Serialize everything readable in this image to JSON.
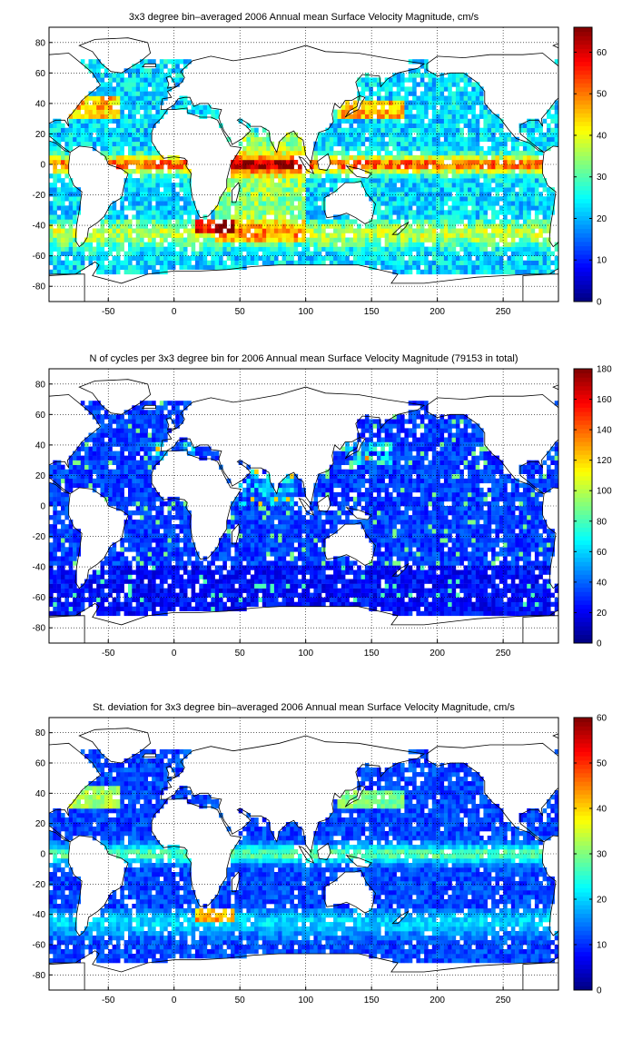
{
  "chart_data": [
    {
      "type": "heatmap",
      "title": "3x3 degree bin–averaged 2006 Annual mean Surface Velocity Magnitude, cm/s",
      "xlabel": "",
      "ylabel": "",
      "xlim": [
        -95,
        292
      ],
      "ylim": [
        -90,
        90
      ],
      "x_ticks": [
        -50,
        0,
        50,
        100,
        150,
        200,
        250
      ],
      "y_ticks": [
        80,
        60,
        40,
        20,
        0,
        -20,
        -40,
        -60,
        -80
      ],
      "grid": true,
      "grid_style": "dotted",
      "colormap": "jet",
      "colorbar": {
        "min": 0,
        "max": 66,
        "ticks": [
          0,
          10,
          20,
          30,
          40,
          50,
          60
        ],
        "placement": "right"
      },
      "field": "mean-velocity"
    },
    {
      "type": "heatmap",
      "title": "N of cycles per 3x3 degree bin for 2006 Annual mean Surface Velocity Magnitude (79153 in total)",
      "xlabel": "",
      "ylabel": "",
      "xlim": [
        -95,
        292
      ],
      "ylim": [
        -90,
        90
      ],
      "x_ticks": [
        -50,
        0,
        50,
        100,
        150,
        200,
        250
      ],
      "y_ticks": [
        80,
        60,
        40,
        20,
        0,
        -20,
        -40,
        -60,
        -80
      ],
      "grid": true,
      "grid_style": "dotted",
      "colormap": "jet",
      "colorbar": {
        "min": 0,
        "max": 180,
        "ticks": [
          0,
          20,
          40,
          60,
          80,
          100,
          120,
          140,
          160,
          180
        ],
        "placement": "right"
      },
      "field": "cycle-count"
    },
    {
      "type": "heatmap",
      "title": "St. deviation for 3x3 degree bin–averaged 2006 Annual mean Surface Velocity Magnitude, cm/s",
      "xlabel": "",
      "ylabel": "",
      "xlim": [
        -95,
        292
      ],
      "ylim": [
        -90,
        90
      ],
      "x_ticks": [
        -50,
        0,
        50,
        100,
        150,
        200,
        250
      ],
      "y_ticks": [
        80,
        60,
        40,
        20,
        0,
        -20,
        -40,
        -60,
        -80
      ],
      "grid": true,
      "grid_style": "dotted",
      "colormap": "jet",
      "colorbar": {
        "min": 0,
        "max": 60,
        "ticks": [
          0,
          10,
          20,
          30,
          40,
          50,
          60
        ],
        "placement": "right"
      },
      "field": "std-velocity"
    }
  ]
}
